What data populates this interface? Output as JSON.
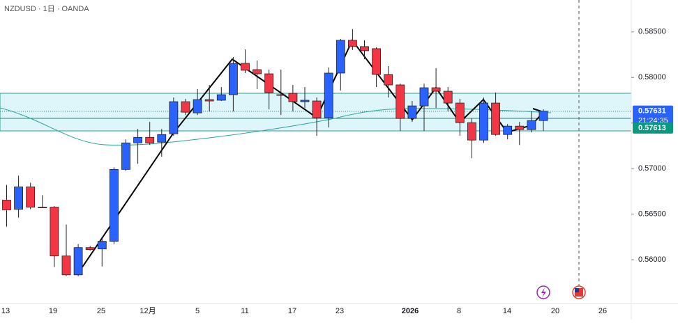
{
  "header": {
    "title": "NZDUSD · 1日 · OANDA"
  },
  "chart_data": {
    "type": "candlestick",
    "open": [
      0.56654,
      0.56554,
      0.56799,
      0.56577,
      0.56577,
      0.56041,
      0.55834,
      0.56133,
      0.56118,
      0.56202,
      0.56991,
      0.57282,
      0.57343,
      0.5729,
      0.57382,
      0.57734,
      0.57611,
      0.57757,
      0.5775,
      0.57811,
      0.58155,
      0.58086,
      0.5804,
      0.57811,
      0.57826,
      0.57734,
      0.57742,
      0.57558,
      0.58048,
      0.58408,
      0.58339,
      0.58316,
      0.58033,
      0.57918,
      0.5755,
      0.57688,
      0.57887,
      0.57849,
      0.57719,
      0.57504,
      0.57313,
      0.57719,
      0.57374,
      0.57466,
      0.57428,
      0.57527
    ],
    "high": [
      0.56822,
      0.56922,
      0.56845,
      0.56708,
      0.5659,
      0.56386,
      0.56171,
      0.5615,
      0.56248,
      0.57014,
      0.5732,
      0.57435,
      0.57512,
      0.57435,
      0.5778,
      0.57765,
      0.57872,
      0.57918,
      0.57895,
      0.58224,
      0.58308,
      0.58186,
      0.58086,
      0.58086,
      0.57918,
      0.57895,
      0.5778,
      0.5811,
      0.58423,
      0.58531,
      0.58408,
      0.58331,
      0.58125,
      0.57933,
      0.57742,
      0.57933,
      0.58102,
      0.57895,
      0.57765,
      0.5755,
      0.5778,
      0.57834,
      0.57489,
      0.57512,
      0.57627,
      0.5765
    ],
    "low": [
      0.56363,
      0.56462,
      0.56554,
      0.5657,
      0.55919,
      0.5582,
      0.55819,
      0.561,
      0.55926,
      0.56171,
      0.56976,
      0.57052,
      0.57259,
      0.57129,
      0.57359,
      0.57588,
      0.57588,
      0.57627,
      0.57742,
      0.57627,
      0.58048,
      0.57872,
      0.5765,
      0.57588,
      0.57627,
      0.57665,
      0.57359,
      0.57451,
      0.57857,
      0.58301,
      0.58201,
      0.57895,
      0.5778,
      0.57412,
      0.57512,
      0.57412,
      0.57665,
      0.57627,
      0.57359,
      0.57114,
      0.57282,
      0.57359,
      0.5732,
      0.57259,
      0.57397,
      0.57412
    ],
    "close": [
      0.56547,
      0.56799,
      0.56577,
      0.5657,
      0.56041,
      0.55834,
      0.56133,
      0.5611,
      0.56202,
      0.56991,
      0.57282,
      0.57343,
      0.57282,
      0.57374,
      0.57734,
      0.57619,
      0.57757,
      0.57742,
      0.57811,
      0.58155,
      0.58079,
      0.5804,
      0.57834,
      0.57804,
      0.57734,
      0.5775,
      0.57558,
      0.58048,
      0.58408,
      0.58339,
      0.58293,
      0.58033,
      0.57918,
      0.5755,
      0.57688,
      0.57887,
      0.57849,
      0.57719,
      0.57504,
      0.57313,
      0.57719,
      0.57374,
      0.57466,
      0.57428,
      0.57527,
      0.57631
    ],
    "up_color": "#2962ff",
    "down_color": "#f23645",
    "ylim": [
      0.5555,
      0.5885
    ],
    "yticks": [
      {
        "value": 0.56,
        "label": "0.56000"
      },
      {
        "value": 0.565,
        "label": "0.56500"
      },
      {
        "value": 0.57,
        "label": "0.57000"
      },
      {
        "value": 0.575,
        "label": "0.57500"
      },
      {
        "value": 0.58,
        "label": "0.58000"
      },
      {
        "value": 0.585,
        "label": "0.58500"
      }
    ],
    "xlabels": [
      "13",
      "19",
      "25",
      "12月",
      "5",
      "11",
      "17",
      "23",
      "2026",
      "8",
      "14",
      "20",
      "26"
    ],
    "last_price": {
      "value": 0.57631,
      "label": "0.57631"
    },
    "countdown": "21:24:35",
    "level": {
      "value": 0.57613,
      "label": "0.57613"
    }
  }
}
